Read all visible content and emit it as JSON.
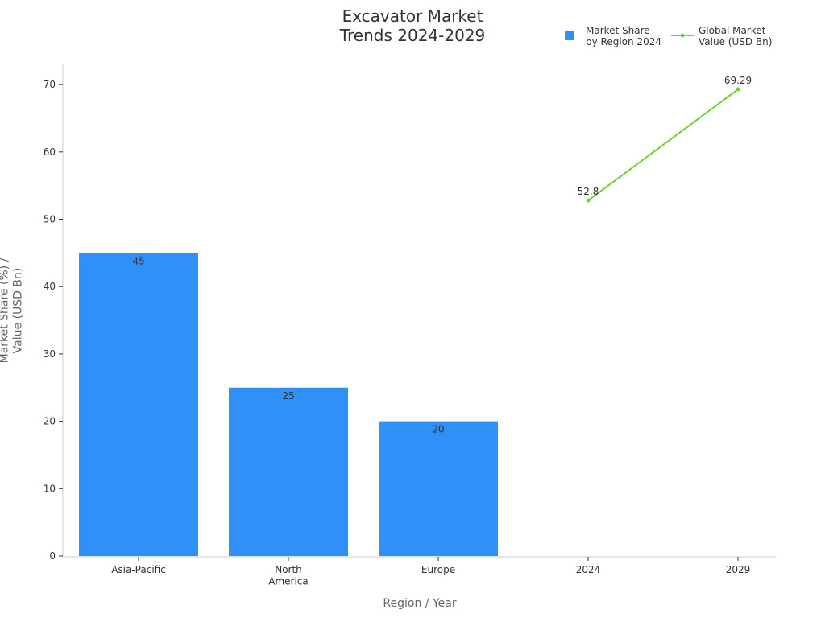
{
  "chart_data": {
    "type": "bar_line",
    "title": "Excavator Market\nTrends 2024-2029",
    "x_label": "Region / Year",
    "y_label": "Market Share (%) /\nValue (USD Bn)",
    "categories": [
      "Asia-Pacific",
      "North\nAmerica",
      "Europe",
      "2024",
      "2029"
    ],
    "series": [
      {
        "name": "Market Share\nby Region 2024",
        "type": "bar",
        "color": "#2f91f7",
        "values": [
          45,
          25,
          20,
          null,
          null
        ]
      },
      {
        "name": "Global Market\nValue (USD Bn)",
        "type": "line",
        "color": "#6dd42f",
        "values": [
          null,
          null,
          null,
          52.8,
          69.29
        ]
      }
    ],
    "ylim": [
      0,
      73
    ],
    "yticks": [
      0,
      10,
      20,
      30,
      40,
      50,
      60,
      70
    ],
    "legend": "upper right"
  }
}
